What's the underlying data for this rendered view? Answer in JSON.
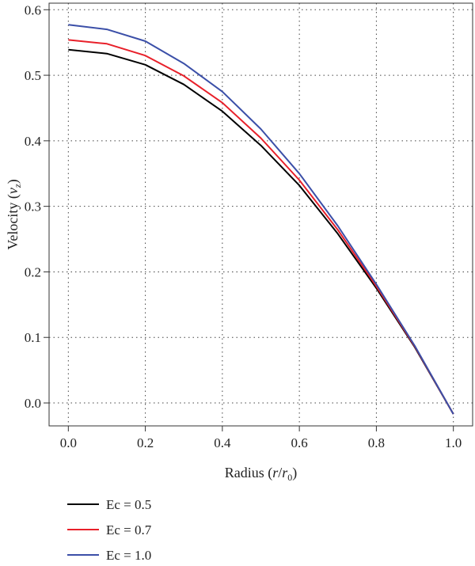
{
  "chart_data": {
    "type": "line",
    "title": "",
    "xlabel_parts": {
      "prefix": "Radius (",
      "var": "r",
      "sep": "/",
      "var2": "r",
      "sub": "0",
      "suffix": ")"
    },
    "ylabel_parts": {
      "prefix": "Velocity (",
      "var": "v",
      "sub": "z",
      "suffix": ")"
    },
    "xlim": [
      -0.05,
      1.05
    ],
    "ylim": [
      -0.035,
      0.61
    ],
    "x_ticks": [
      "0.0",
      "0.2",
      "0.4",
      "0.6",
      "0.8",
      "1.0"
    ],
    "y_ticks": [
      "0.0",
      "0.1",
      "0.2",
      "0.3",
      "0.4",
      "0.5",
      "0.6"
    ],
    "grid": true,
    "legend_placement": "bottom-left, below plot",
    "x": [
      0.0,
      0.1,
      0.2,
      0.3,
      0.4,
      0.5,
      0.6,
      0.7,
      0.8,
      0.9,
      1.0
    ],
    "series": [
      {
        "name": "Ec = 0.5",
        "color": "#000000",
        "values": [
          0.539,
          0.533,
          0.516,
          0.486,
          0.445,
          0.393,
          0.332,
          0.258,
          0.175,
          0.085,
          -0.017
        ]
      },
      {
        "name": "Ec = 0.7",
        "color": "#e8202a",
        "values": [
          0.554,
          0.548,
          0.53,
          0.499,
          0.458,
          0.404,
          0.34,
          0.264,
          0.178,
          0.086,
          -0.017
        ]
      },
      {
        "name": "Ec = 1.0",
        "color": "#3b4fa8",
        "values": [
          0.577,
          0.57,
          0.552,
          0.518,
          0.475,
          0.418,
          0.35,
          0.27,
          0.181,
          0.087,
          -0.017
        ]
      }
    ]
  }
}
